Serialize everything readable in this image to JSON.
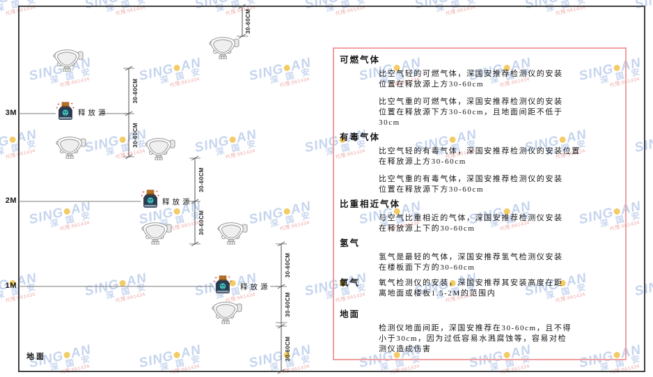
{
  "watermark": {
    "brand_left": "SING",
    "brand_right": "AN",
    "cn": "深 国 安",
    "note": "代理:661434"
  },
  "axis": {
    "m3": "3M",
    "m2": "2M",
    "m1": "1M",
    "ground": "地面"
  },
  "diagram": {
    "release_source": "释放源",
    "dim": "30-60CM"
  },
  "panel": {
    "sections": [
      {
        "heading": "可燃气体",
        "paragraphs": [
          [
            "比空气轻的可燃气体，深国安推荐检测仪的安装",
            "位置在释放源上方30-60cm"
          ],
          [
            "比空气重的可燃气体，深国安推荐检测仪的安装",
            "位置在释放源下方30-60cm，且地面间距不低于",
            "30cm"
          ]
        ]
      },
      {
        "heading": "有毒气体",
        "paragraphs": [
          [
            "比空气轻的有毒气体，深国安推荐检测仪的安装位置",
            "在释放源上方30-60cm"
          ],
          [
            "比空气重的有毒气体，深国安推荐检测仪的安装",
            "位置在释放源下方30-60cm"
          ]
        ]
      },
      {
        "heading": "比重相近气体",
        "paragraphs": [
          [
            "与空气比重相近的气体，深国安推荐检测仪安装",
            "在释放源上下的30-60cm"
          ]
        ]
      },
      {
        "heading": "氢气",
        "paragraphs": [
          [
            "氢气是最轻的气体，深国安推荐氢气检测仪安装",
            "在楼板面下方的30-60cm"
          ]
        ]
      },
      {
        "heading": "氧气",
        "paragraphs": [
          [
            "氧气检测仪的安装，深国安推荐其安装高度在距",
            "离地面或楼板1.5-2M的范围内"
          ]
        ]
      },
      {
        "heading": "地面",
        "paragraphs": [
          [
            "检测仪地面间距，深国安推荐在30-60cm，且不得",
            "小于30cm，因为过低容易水溅腐蚀等，容易对检",
            "测仪造成伤害"
          ]
        ]
      }
    ]
  }
}
